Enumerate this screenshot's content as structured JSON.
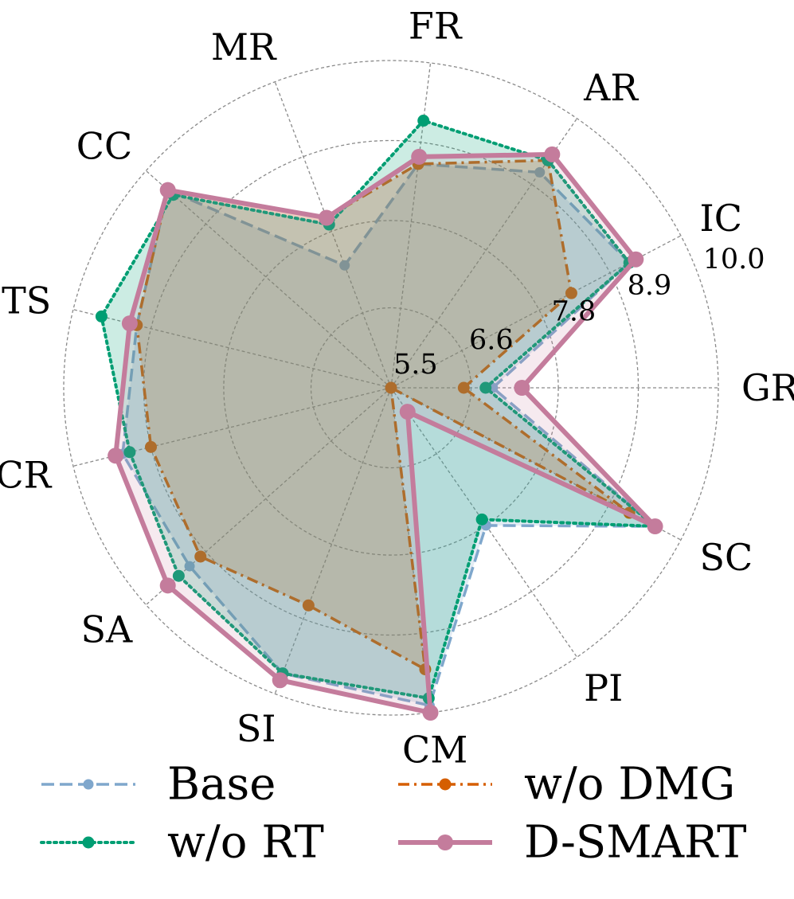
{
  "chart_data": {
    "type": "radar",
    "categories": [
      "GR",
      "IC",
      "AR",
      "FR",
      "MR",
      "CC",
      "TS",
      "CR",
      "SA",
      "SI",
      "CM",
      "PI",
      "SC"
    ],
    "rlim": [
      5.5,
      10.0
    ],
    "rticks": [
      5.5,
      6.6,
      7.8,
      8.9,
      10.0
    ],
    "rtick_labels": [
      "5.5",
      "6.6",
      "7.8",
      "8.9",
      "10.0"
    ],
    "grid": true,
    "legend_position": "bottom",
    "series": [
      {
        "name": "Base",
        "color": "#7fa7cc",
        "line_style": "dashed",
        "values": [
          6.9,
          9.2,
          9.1,
          8.6,
          7.3,
          9.6,
          9.1,
          9.3,
          9.2,
          9.7,
          9.9,
          7.8,
          9.6
        ]
      },
      {
        "name": "w/o DMG",
        "color": "#d55e00",
        "line_style": "dashdot",
        "values": [
          6.5,
          8.3,
          9.3,
          8.6,
          8.0,
          9.6,
          9.1,
          8.9,
          9.0,
          8.7,
          9.4,
          5.5,
          9.2
        ]
      },
      {
        "name": "w/o RT",
        "color": "#009e73",
        "line_style": "dotted",
        "values": [
          6.8,
          9.2,
          9.3,
          9.2,
          7.9,
          9.5,
          9.6,
          9.2,
          9.4,
          9.7,
          9.8,
          7.7,
          9.6
        ]
      },
      {
        "name": "D-SMART",
        "color": "#c47c9c",
        "line_style": "solid",
        "values": [
          7.3,
          9.3,
          9.4,
          8.7,
          8.0,
          9.6,
          9.2,
          9.4,
          9.6,
          9.8,
          10.0,
          5.9,
          9.6
        ]
      }
    ],
    "legend": [
      "Base",
      "w/o DMG",
      "w/o RT",
      "D-SMART"
    ]
  }
}
